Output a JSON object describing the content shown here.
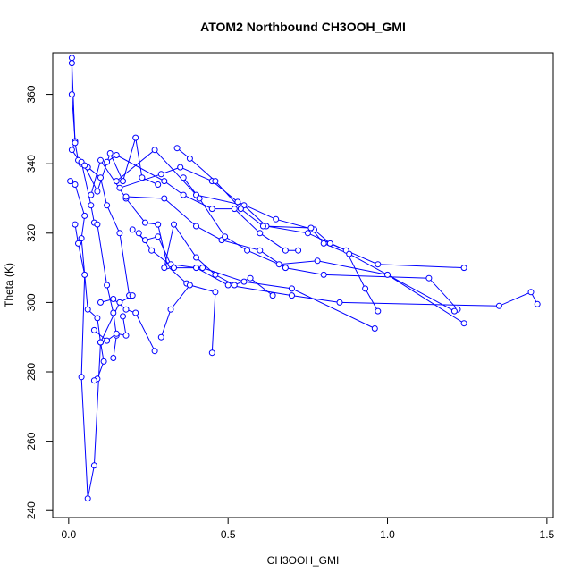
{
  "chart_data": {
    "type": "line",
    "title": "ATOM2 Northbound CH3OOH_GMI",
    "xlabel": "CH3OOH_GMI",
    "ylabel": "Theta (K)",
    "xlim": [
      -0.05,
      1.52
    ],
    "ylim": [
      238,
      372
    ],
    "x_ticks": [
      0.0,
      0.5,
      1.0,
      1.5
    ],
    "x_tick_labels": [
      "0.0",
      "0.5",
      "1.0",
      "1.5"
    ],
    "y_ticks": [
      240,
      260,
      280,
      300,
      320,
      340,
      360
    ],
    "y_tick_labels": [
      "240",
      "260",
      "280",
      "300",
      "320",
      "340",
      "360"
    ],
    "grid": false,
    "legend": "none",
    "line_color": "#0000ff",
    "marker": "open-circle",
    "series": [
      {
        "segments": [
          [
            [
              0.01,
              370.5
            ],
            [
              0.01,
              360
            ],
            [
              0.02,
              346.5
            ],
            [
              0.01,
              344
            ],
            [
              0.04,
              340
            ],
            [
              0.06,
              339
            ],
            [
              0.1,
              336
            ],
            [
              0.12,
              328
            ],
            [
              0.16,
              320
            ],
            [
              0.19,
              302
            ]
          ],
          [
            [
              0.01,
              369
            ],
            [
              0.02,
              346
            ],
            [
              0.03,
              341
            ],
            [
              0.04,
              340.5
            ],
            [
              0.07,
              328
            ],
            [
              0.08,
              323
            ],
            [
              0.09,
              322.5
            ],
            [
              0.12,
              305
            ],
            [
              0.14,
              297
            ],
            [
              0.15,
              290.5
            ],
            [
              0.14,
              284
            ]
          ],
          [
            [
              0.005,
              335
            ],
            [
              0.02,
              334
            ],
            [
              0.05,
              325
            ],
            [
              0.04,
              318.5
            ],
            [
              0.06,
              298
            ],
            [
              0.09,
              295.5
            ],
            [
              0.1,
              288.5
            ],
            [
              0.11,
              283
            ],
            [
              0.09,
              278
            ],
            [
              0.08,
              277.5
            ]
          ],
          [
            [
              0.02,
              322.5
            ],
            [
              0.03,
              317
            ],
            [
              0.05,
              308
            ],
            [
              0.04,
              278.5
            ],
            [
              0.06,
              243.5
            ],
            [
              0.08,
              253
            ],
            [
              0.1,
              288.5
            ],
            [
              0.16,
              300
            ],
            [
              0.2,
              302
            ]
          ],
          [
            [
              0.05,
              339.5
            ],
            [
              0.09,
              332
            ],
            [
              0.13,
              343
            ],
            [
              0.17,
              335
            ],
            [
              0.21,
              347.5
            ],
            [
              0.23,
              336
            ],
            [
              0.28,
              334
            ]
          ],
          [
            [
              0.07,
              331
            ],
            [
              0.1,
              341
            ],
            [
              0.18,
              330
            ],
            [
              0.24,
              323
            ],
            [
              0.28,
              322.5
            ],
            [
              0.31,
              310.5
            ],
            [
              0.37,
              305.5
            ]
          ],
          [
            [
              0.12,
              340.5
            ],
            [
              0.15,
              342.5
            ],
            [
              0.3,
              335
            ],
            [
              0.36,
              331
            ],
            [
              0.45,
              327
            ],
            [
              0.52,
              327
            ],
            [
              0.6,
              320
            ],
            [
              0.68,
              315
            ],
            [
              0.72,
              315
            ]
          ],
          [
            [
              0.15,
              335
            ],
            [
              0.27,
              344
            ],
            [
              0.4,
              331
            ],
            [
              0.55,
              328
            ],
            [
              0.62,
              322
            ],
            [
              0.75,
              320
            ],
            [
              0.87,
              315
            ],
            [
              0.93,
              304
            ],
            [
              0.97,
              297.5
            ]
          ],
          [
            [
              0.16,
              333
            ],
            [
              0.29,
              337
            ],
            [
              0.35,
              339
            ],
            [
              0.45,
              335
            ],
            [
              0.53,
              329
            ],
            [
              0.65,
              324
            ],
            [
              0.77,
              321
            ],
            [
              0.82,
              317
            ],
            [
              0.97,
              311
            ],
            [
              1.24,
              310
            ]
          ],
          [
            [
              0.18,
              330.5
            ],
            [
              0.3,
              330
            ],
            [
              0.4,
              322
            ],
            [
              0.48,
              318
            ],
            [
              0.6,
              315
            ],
            [
              0.68,
              310
            ],
            [
              0.8,
              308
            ],
            [
              1.13,
              307
            ],
            [
              1.22,
              298
            ]
          ],
          [
            [
              0.2,
              321
            ],
            [
              0.24,
              318
            ],
            [
              0.28,
              319
            ],
            [
              0.32,
              311
            ],
            [
              0.4,
              310
            ],
            [
              0.5,
              305
            ],
            [
              0.7,
              302
            ],
            [
              0.85,
              300
            ],
            [
              1.35,
              299
            ],
            [
              1.45,
              303
            ],
            [
              1.47,
              299.5
            ]
          ],
          [
            [
              0.22,
              320
            ],
            [
              0.26,
              315
            ],
            [
              0.33,
              310
            ],
            [
              0.42,
              310
            ],
            [
              0.55,
              306
            ],
            [
              0.7,
              304
            ],
            [
              0.96,
              292.5
            ]
          ],
          [
            [
              0.1,
              300
            ],
            [
              0.14,
              301
            ],
            [
              0.18,
              298
            ],
            [
              0.21,
              297
            ],
            [
              0.27,
              286
            ]
          ],
          [
            [
              0.08,
              292
            ],
            [
              0.12,
              289
            ],
            [
              0.15,
              291
            ],
            [
              0.18,
              290.5
            ],
            [
              0.17,
              296
            ]
          ],
          [
            [
              0.29,
              290
            ],
            [
              0.32,
              298
            ],
            [
              0.38,
              305
            ],
            [
              0.46,
              303
            ],
            [
              0.45,
              285.5
            ]
          ],
          [
            [
              0.3,
              310
            ],
            [
              0.33,
              322.5
            ],
            [
              0.4,
              313
            ],
            [
              0.46,
              308
            ],
            [
              0.52,
              305
            ],
            [
              0.57,
              307
            ],
            [
              0.64,
              302
            ]
          ],
          [
            [
              0.34,
              344.5
            ],
            [
              0.38,
              341.5
            ],
            [
              0.46,
              335
            ],
            [
              0.54,
              327
            ],
            [
              0.61,
              322
            ],
            [
              0.76,
              321.5
            ],
            [
              0.8,
              317
            ],
            [
              0.88,
              314
            ],
            [
              1.21,
              297.5
            ]
          ],
          [
            [
              0.36,
              336
            ],
            [
              0.41,
              330
            ],
            [
              0.49,
              319
            ],
            [
              0.56,
              315
            ],
            [
              0.66,
              311
            ],
            [
              0.78,
              312
            ],
            [
              1.0,
              308
            ],
            [
              1.24,
              294
            ]
          ]
        ]
      }
    ]
  }
}
